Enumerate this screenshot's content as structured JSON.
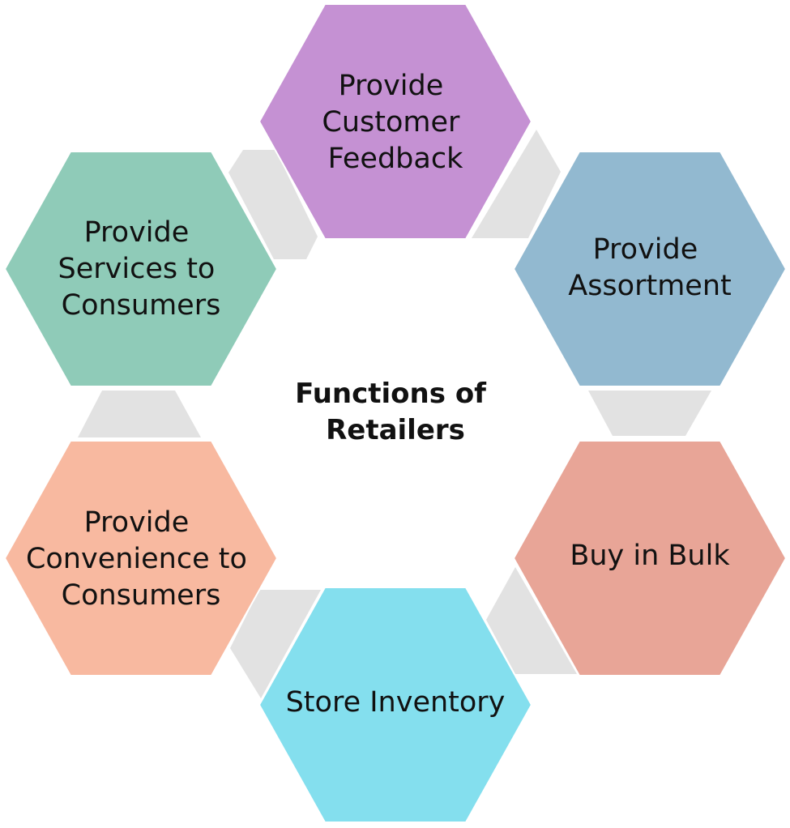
{
  "center": {
    "title_lines": [
      "Functions of",
      "Retailers"
    ]
  },
  "hexagons": [
    {
      "id": "provide-customer-feedback",
      "label_lines": [
        "Provide",
        "Customer",
        "Feedback"
      ],
      "color": "#c591d3"
    },
    {
      "id": "provide-assortment",
      "label_lines": [
        "Provide",
        "Assortment"
      ],
      "color": "#92b9d0"
    },
    {
      "id": "buy-in-bulk",
      "label_lines": [
        "Buy in Bulk"
      ],
      "color": "#e8a597"
    },
    {
      "id": "store-inventory",
      "label_lines": [
        "Store Inventory"
      ],
      "color": "#84dfee"
    },
    {
      "id": "provide-convenience-to-consumers",
      "label_lines": [
        "Provide",
        "Convenience to",
        "Consumers"
      ],
      "color": "#f8b9a0"
    },
    {
      "id": "provide-services-to-consumers",
      "label_lines": [
        "Provide",
        "Services to",
        "Consumers"
      ],
      "color": "#8fcbb8"
    }
  ],
  "connector_color": "#e2e2e2"
}
